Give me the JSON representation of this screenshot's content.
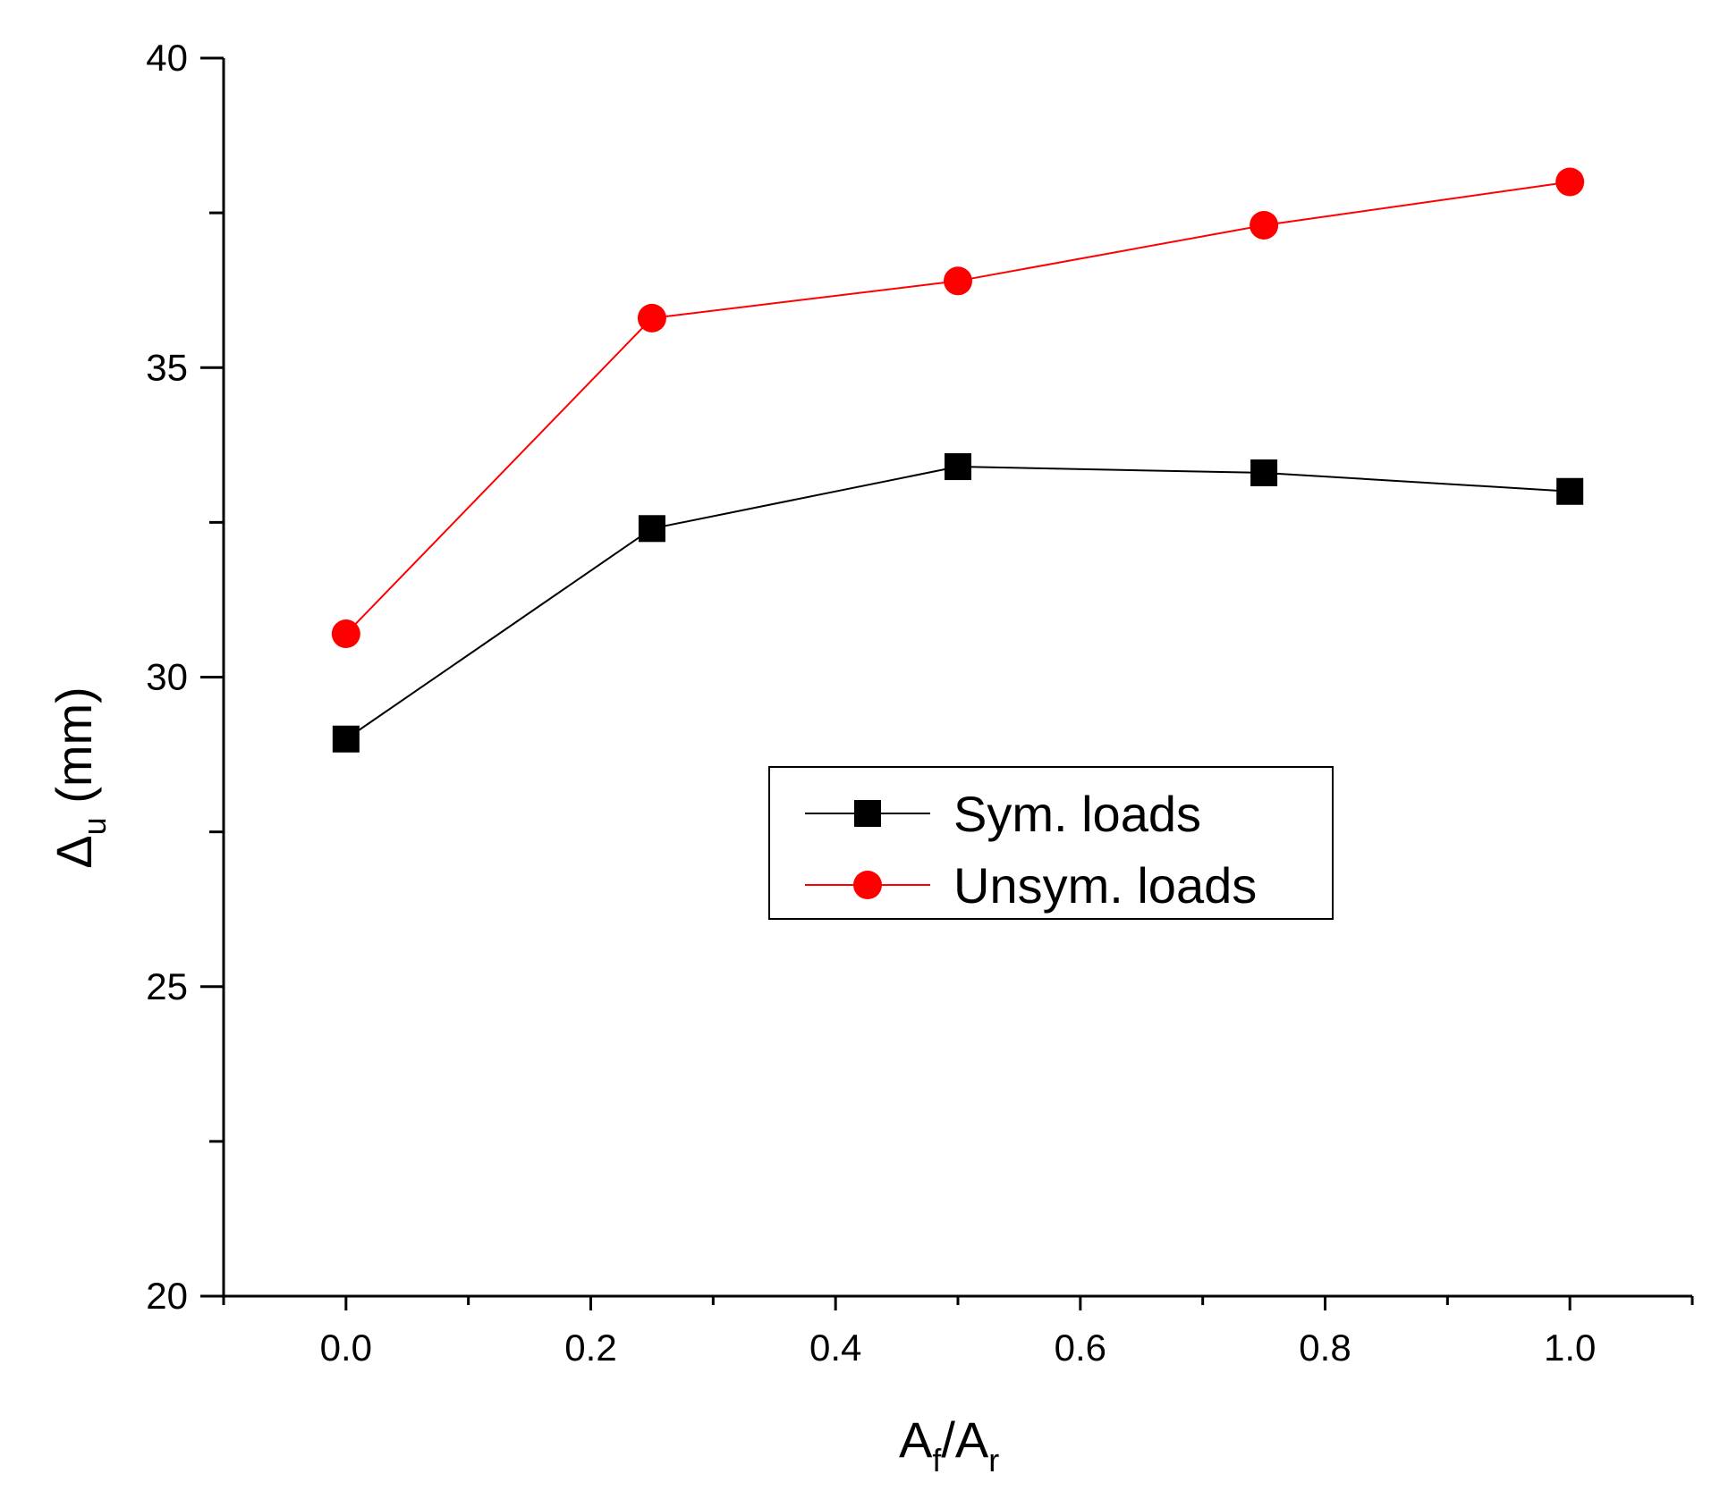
{
  "chart_data": {
    "type": "line",
    "title": "",
    "x": [
      0.0,
      0.25,
      0.5,
      0.75,
      1.0
    ],
    "xlim": [
      -0.1,
      1.1
    ],
    "ylim": [
      20,
      40
    ],
    "xticks": [
      "0.0",
      "0.2",
      "0.4",
      "0.6",
      "0.8",
      "1.0"
    ],
    "yticks": [
      "20",
      "25",
      "30",
      "35",
      "40"
    ],
    "xlabel": {
      "main": "A",
      "sub1": "f",
      "slash": "/A",
      "sub2": "r"
    },
    "ylabel": {
      "main": "Δ",
      "sub": "u",
      "rest": " (mm)"
    },
    "grid": false,
    "legend_position": "center-right",
    "series": [
      {
        "name": "Sym. loads",
        "marker": "square",
        "color": "#000000",
        "values": [
          29.0,
          32.4,
          33.4,
          33.3,
          33.0
        ]
      },
      {
        "name": "Unsym. loads",
        "marker": "circle",
        "color": "#ff0000",
        "values": [
          30.7,
          35.8,
          36.4,
          37.3,
          38.0
        ]
      }
    ]
  }
}
